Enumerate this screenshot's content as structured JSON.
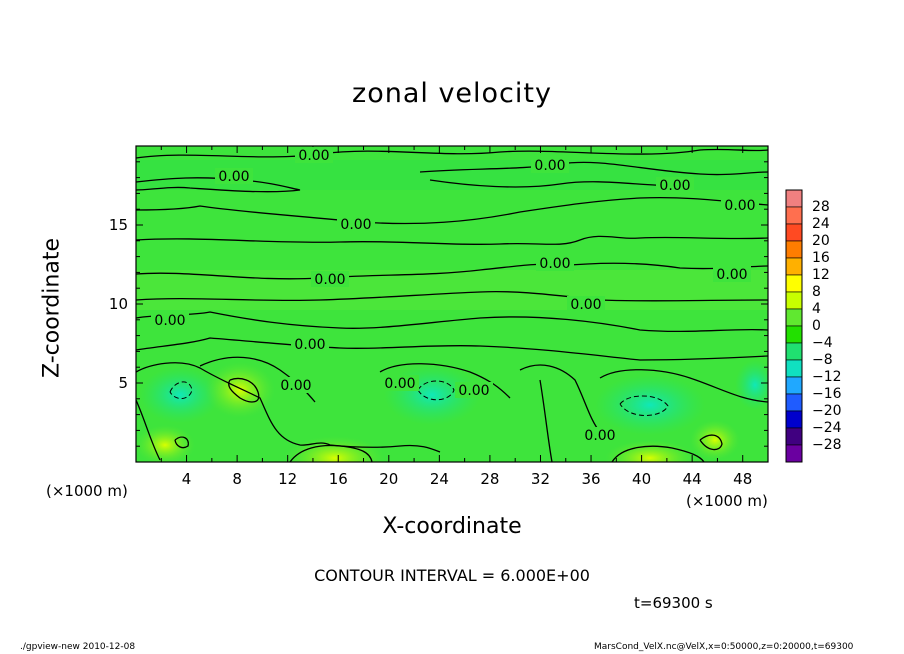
{
  "chart_data": {
    "type": "heatmap",
    "title": "zonal velocity",
    "xlabel": "X-coordinate",
    "ylabel": "Z-coordinate",
    "x_unit": "(×1000 m)",
    "y_unit": "(×1000 m)",
    "x_ticks": [
      "4",
      "8",
      "12",
      "16",
      "20",
      "24",
      "28",
      "32",
      "36",
      "40",
      "44",
      "48"
    ],
    "y_ticks": [
      "5",
      "10",
      "15"
    ],
    "xlim": [
      0,
      50
    ],
    "ylim": [
      0,
      20
    ],
    "colorbar_labels": [
      "28",
      "24",
      "20",
      "16",
      "12",
      "8",
      "4",
      "0",
      "−4",
      "−8",
      "−12",
      "−16",
      "−20",
      "−24",
      "−28"
    ],
    "colorbar_colors": [
      "#f08080",
      "#ff6f4f",
      "#ff4a22",
      "#ff7d00",
      "#ffb000",
      "#ffff00",
      "#c8ff00",
      "#60e830",
      "#22e000",
      "#20e070",
      "#10e0c0",
      "#20a8ff",
      "#1f5cff",
      "#0000cc",
      "#400080",
      "#6a00a0"
    ],
    "contour_labels": [
      "0.00",
      "0.00",
      "0.00",
      "0.00",
      "0.00",
      "0.00",
      "0.00",
      "0.00",
      "0.00",
      "0.00",
      "0.00",
      "0.00",
      "0.00",
      "0.00",
      "0.00",
      "0.00"
    ],
    "contour_interval_text": "CONTOUR INTERVAL = 6.000E+00",
    "time_text": "t=69300 s"
  },
  "footer": {
    "left": "./gpview-new   2010-12-08",
    "right": "MarsCond_VelX.nc@VelX,x=0:50000,z=0:20000,t=69300"
  }
}
